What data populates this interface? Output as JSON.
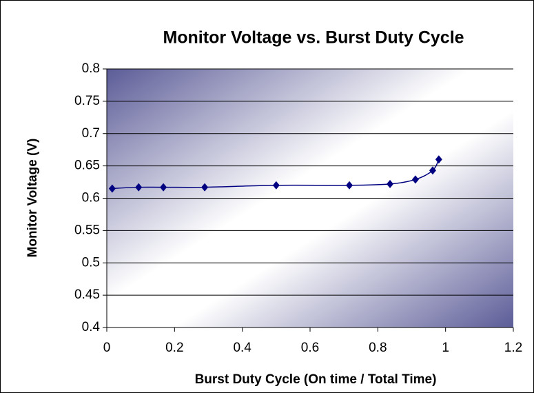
{
  "chart_data": {
    "type": "scatter",
    "title": "Monitor Voltage vs. Burst Duty Cycle",
    "x_label": "Burst Duty Cycle (On time / Total Time)",
    "y_label": "Monitor Voltage (V)",
    "series": [
      {
        "color": "#000080",
        "x": [
          0.016,
          0.094,
          0.167,
          0.289,
          0.5,
          0.716,
          0.836,
          0.911,
          0.962,
          0.98
        ],
        "values": [
          0.615,
          0.617,
          0.617,
          0.617,
          0.62,
          0.62,
          0.622,
          0.629,
          0.643,
          0.66
        ]
      }
    ],
    "xlim": [
      0,
      1.2
    ],
    "xticks": [
      0,
      0.2,
      0.4,
      0.6,
      0.8,
      1,
      1.2
    ],
    "ylim": [
      0.4,
      0.8
    ],
    "yticks": [
      0.4,
      0.45,
      0.5,
      0.55,
      0.6,
      0.65,
      0.7,
      0.75,
      0.8
    ],
    "grid": true
  }
}
